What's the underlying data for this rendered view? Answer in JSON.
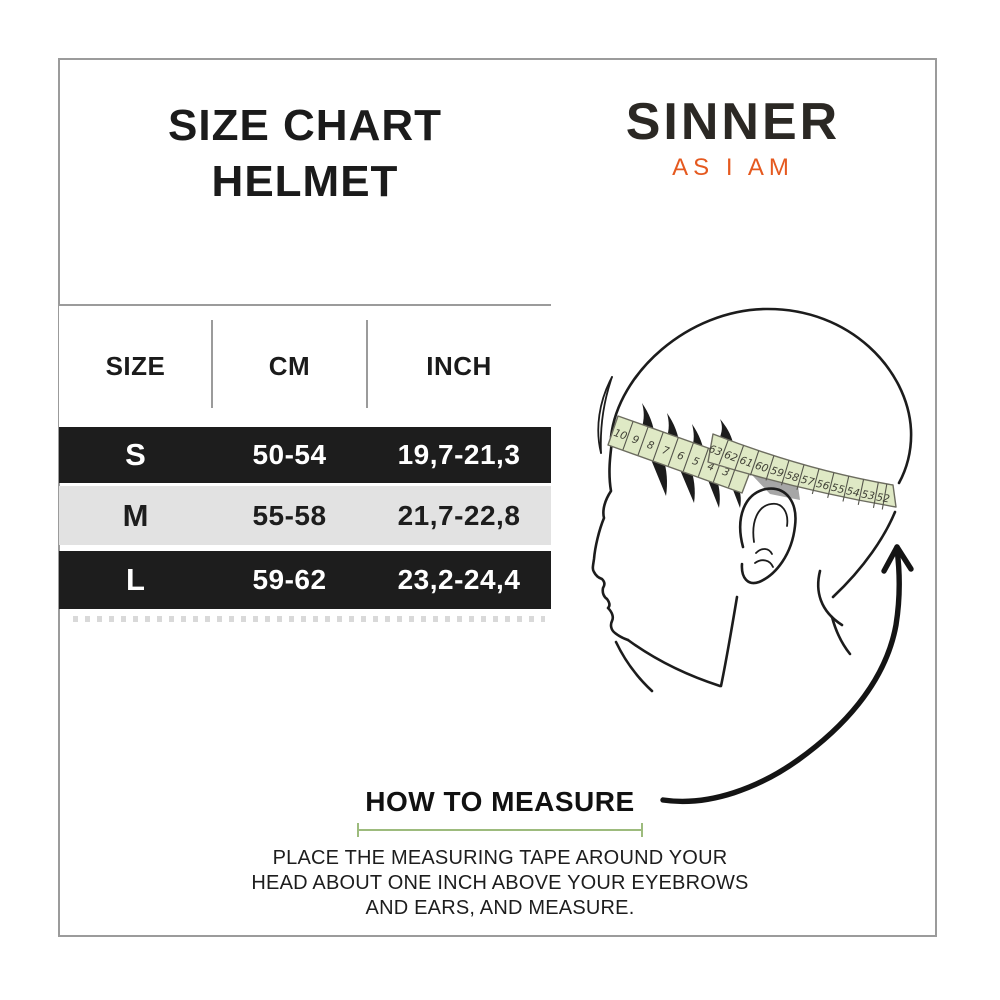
{
  "page": {
    "background": "#ffffff",
    "frame_color": "#9b9b9b"
  },
  "title": {
    "line1": "SIZE CHART",
    "line2": "HELMET",
    "color": "#1b1b1b"
  },
  "brand": {
    "name": "SINNER",
    "tagline": "AS I AM",
    "name_color": "#2b2824",
    "tagline_color": "#e5591f"
  },
  "size_table": {
    "columns": [
      "SIZE",
      "CM",
      "INCH"
    ],
    "rows": [
      {
        "size": "S",
        "cm": "50-54",
        "inch": "19,7-21,3",
        "variant": "dark"
      },
      {
        "size": "M",
        "cm": "55-58",
        "inch": "21,7-22,8",
        "variant": "light"
      },
      {
        "size": "L",
        "cm": "59-62",
        "inch": "23,2-24,4",
        "variant": "dark"
      }
    ],
    "colors": {
      "dark_row_bg": "#1d1d1d",
      "dark_row_text": "#ffffff",
      "light_row_bg": "#e2e2e2",
      "light_row_text": "#1d1d1d",
      "divider": "#9b9b9b"
    }
  },
  "how_to_measure": {
    "heading": "HOW TO MEASURE",
    "lines": [
      "PLACE THE MEASURING TAPE AROUND YOUR",
      "HEAD ABOUT ONE INCH ABOVE YOUR EYEBROWS",
      "AND EARS, AND MEASURE."
    ],
    "rule_color": "#9dbb7d"
  },
  "illustration": {
    "description": "side profile head with measuring tape and arrow",
    "tape_fill": "#dfe9c5",
    "tape_stroke": "#6d6d60",
    "line_color": "#1c1c1c",
    "tape_numbers_outer": [
      "63",
      "62",
      "61",
      "60",
      "59",
      "58",
      "57",
      "56",
      "55",
      "54",
      "53",
      "52"
    ],
    "tape_numbers_inner": [
      "10",
      "9",
      "8",
      "7",
      "6",
      "5",
      "4",
      "3"
    ]
  }
}
